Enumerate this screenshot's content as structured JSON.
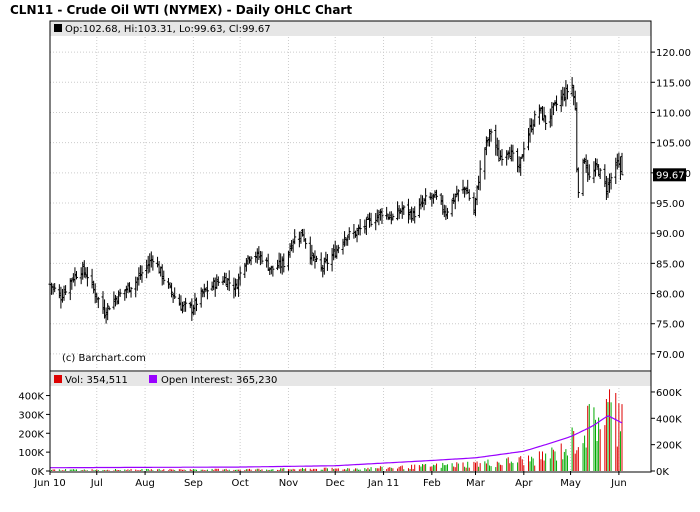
{
  "chart_data": [
    {
      "type": "ohlc",
      "title": "CLN11 - Crude Oil WTI (NYMEX) - Daily OHLC Chart",
      "legend": "Op:102.68, Hi:103.31, Lo:99.63, Cl:99.67",
      "last_price_label": "99.67",
      "copyright": "(c) Barchart.com",
      "ylim": [
        67.5,
        122.5
      ],
      "y_ticks": [
        {
          "v": 70,
          "label": "70.00"
        },
        {
          "v": 75,
          "label": "75.00"
        },
        {
          "v": 80,
          "label": "80.00"
        },
        {
          "v": 85,
          "label": "85.00"
        },
        {
          "v": 90,
          "label": "90.00"
        },
        {
          "v": 95,
          "label": "95.00"
        },
        {
          "v": 100,
          "label": "100.00"
        },
        {
          "v": 105,
          "label": "105.00"
        },
        {
          "v": 110,
          "label": "110.00"
        },
        {
          "v": 115,
          "label": "115.00"
        },
        {
          "v": 120,
          "label": "120.00"
        }
      ],
      "x_ticks": [
        {
          "date": "2010-06-01",
          "label": "Jun 10"
        },
        {
          "date": "2010-07-01",
          "label": "Jul"
        },
        {
          "date": "2010-08-01",
          "label": "Aug"
        },
        {
          "date": "2010-09-01",
          "label": "Sep"
        },
        {
          "date": "2010-10-01",
          "label": "Oct"
        },
        {
          "date": "2010-11-01",
          "label": "Nov"
        },
        {
          "date": "2010-12-01",
          "label": "Dec"
        },
        {
          "date": "2011-01-01",
          "label": "Jan 11"
        },
        {
          "date": "2011-02-01",
          "label": "Feb"
        },
        {
          "date": "2011-03-01",
          "label": "Mar"
        },
        {
          "date": "2011-04-01",
          "label": "Apr"
        },
        {
          "date": "2011-05-01",
          "label": "May"
        },
        {
          "date": "2011-06-01",
          "label": "Jun"
        }
      ],
      "close_anchors": [
        [
          "2010-06-01",
          81.5
        ],
        [
          "2010-06-08",
          79.5
        ],
        [
          "2010-06-15",
          82.5
        ],
        [
          "2010-06-21",
          84.0
        ],
        [
          "2010-06-25",
          83.0
        ],
        [
          "2010-06-30",
          80.0
        ],
        [
          "2010-07-06",
          77.0
        ],
        [
          "2010-07-12",
          79.0
        ],
        [
          "2010-07-19",
          80.5
        ],
        [
          "2010-07-26",
          82.0
        ],
        [
          "2010-08-02",
          84.5
        ],
        [
          "2010-08-06",
          86.0
        ],
        [
          "2010-08-10",
          84.0
        ],
        [
          "2010-08-16",
          81.0
        ],
        [
          "2010-08-24",
          78.0
        ],
        [
          "2010-08-31",
          77.5
        ],
        [
          "2010-09-07",
          80.0
        ],
        [
          "2010-09-14",
          81.5
        ],
        [
          "2010-09-21",
          82.5
        ],
        [
          "2010-09-28",
          81.0
        ],
        [
          "2010-10-04",
          85.5
        ],
        [
          "2010-10-08",
          86.5
        ],
        [
          "2010-10-15",
          86.0
        ],
        [
          "2010-10-21",
          84.0
        ],
        [
          "2010-10-29",
          85.0
        ],
        [
          "2010-11-04",
          89.0
        ],
        [
          "2010-11-10",
          90.0
        ],
        [
          "2010-11-16",
          86.0
        ],
        [
          "2010-11-22",
          84.0
        ],
        [
          "2010-11-30",
          86.5
        ],
        [
          "2010-12-07",
          89.5
        ],
        [
          "2010-12-14",
          90.0
        ],
        [
          "2010-12-21",
          91.5
        ],
        [
          "2010-12-31",
          93.5
        ],
        [
          "2011-01-07",
          92.5
        ],
        [
          "2011-01-13",
          94.0
        ],
        [
          "2011-01-20",
          93.0
        ],
        [
          "2011-01-28",
          95.5
        ],
        [
          "2011-02-03",
          96.0
        ],
        [
          "2011-02-10",
          93.5
        ],
        [
          "2011-02-17",
          96.5
        ],
        [
          "2011-02-23",
          97.5
        ],
        [
          "2011-02-28",
          93.5
        ],
        [
          "2011-03-03",
          99.0
        ],
        [
          "2011-03-07",
          104.0
        ],
        [
          "2011-03-11",
          107.0
        ],
        [
          "2011-03-16",
          102.5
        ],
        [
          "2011-03-22",
          104.0
        ],
        [
          "2011-03-29",
          100.5
        ],
        [
          "2011-04-01",
          104.5
        ],
        [
          "2011-04-07",
          108.5
        ],
        [
          "2011-04-11",
          110.5
        ],
        [
          "2011-04-15",
          108.5
        ],
        [
          "2011-04-21",
          111.0
        ],
        [
          "2011-04-27",
          113.0
        ],
        [
          "2011-05-02",
          114.5
        ],
        [
          "2011-05-04",
          110.5
        ],
        [
          "2011-05-05",
          101.0
        ],
        [
          "2011-05-06",
          97.5
        ],
        [
          "2011-05-10",
          102.5
        ],
        [
          "2011-05-13",
          99.0
        ],
        [
          "2011-05-18",
          101.0
        ],
        [
          "2011-05-24",
          97.5
        ],
        [
          "2011-05-31",
          101.5
        ],
        [
          "2011-06-03",
          99.67
        ]
      ],
      "last_bar": {
        "open": 102.68,
        "high": 103.31,
        "low": 99.63,
        "close": 99.67
      }
    },
    {
      "type": "bar+line",
      "legend": {
        "volume": "Vol: 354,511",
        "open_interest": "Open Interest: 365,230"
      },
      "y_ticks_left": [
        {
          "v": 0,
          "label": "0K"
        },
        {
          "v": 100000,
          "label": "100K"
        },
        {
          "v": 200000,
          "label": "200K"
        },
        {
          "v": 300000,
          "label": "300K"
        },
        {
          "v": 400000,
          "label": "400K"
        }
      ],
      "y_ticks_right": [
        {
          "v": 0,
          "label": "0K"
        },
        {
          "v": 200000,
          "label": "200K"
        },
        {
          "v": 400000,
          "label": "400K"
        },
        {
          "v": 600000,
          "label": "600K"
        }
      ],
      "volume_ylim": [
        0,
        440000
      ],
      "oi_ylim": [
        0,
        630000
      ],
      "volume_anchors": [
        [
          "2010-06-01",
          8000
        ],
        [
          "2010-10-01",
          10000
        ],
        [
          "2010-12-15",
          16000
        ],
        [
          "2011-01-15",
          25000
        ],
        [
          "2011-02-15",
          40000
        ],
        [
          "2011-03-15",
          55000
        ],
        [
          "2011-04-10",
          80000
        ],
        [
          "2011-04-25",
          130000
        ],
        [
          "2011-05-05",
          220000
        ],
        [
          "2011-05-15",
          320000
        ],
        [
          "2011-05-25",
          400000
        ],
        [
          "2011-06-03",
          354511
        ]
      ],
      "oi_anchors": [
        [
          "2010-06-01",
          25000
        ],
        [
          "2010-10-01",
          30000
        ],
        [
          "2010-12-01",
          40000
        ],
        [
          "2011-01-01",
          60000
        ],
        [
          "2011-02-01",
          80000
        ],
        [
          "2011-03-01",
          100000
        ],
        [
          "2011-04-01",
          150000
        ],
        [
          "2011-04-15",
          200000
        ],
        [
          "2011-05-01",
          260000
        ],
        [
          "2011-05-15",
          340000
        ],
        [
          "2011-05-25",
          420000
        ],
        [
          "2011-06-03",
          365230
        ]
      ],
      "colors": {
        "volume_up": "#00aa00",
        "volume_down": "#dd0000",
        "open_interest": "#9900ff"
      }
    }
  ]
}
